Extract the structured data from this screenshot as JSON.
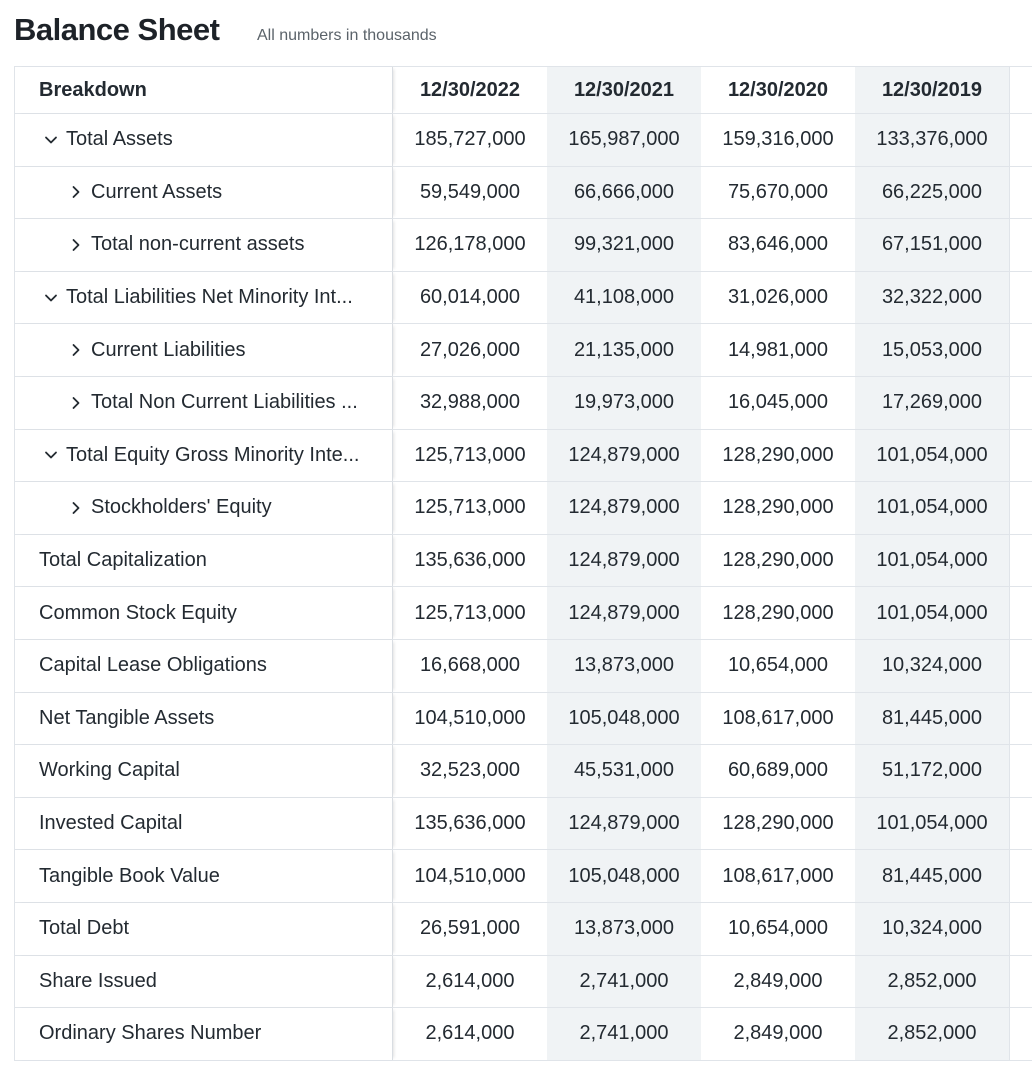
{
  "page": {
    "title": "Balance Sheet",
    "subtitle": "All numbers in thousands"
  },
  "table": {
    "header": {
      "breakdown_label": "Breakdown",
      "columns": [
        "12/30/2022",
        "12/30/2021",
        "12/30/2020",
        "12/30/2019"
      ]
    },
    "rows": [
      {
        "label": "Total Assets",
        "level": 1,
        "toggle": "expanded",
        "values": [
          "185,727,000",
          "165,987,000",
          "159,316,000",
          "133,376,000"
        ]
      },
      {
        "label": "Current Assets",
        "level": 2,
        "toggle": "collapsed",
        "values": [
          "59,549,000",
          "66,666,000",
          "75,670,000",
          "66,225,000"
        ]
      },
      {
        "label": "Total non-current assets",
        "level": 2,
        "toggle": "collapsed",
        "values": [
          "126,178,000",
          "99,321,000",
          "83,646,000",
          "67,151,000"
        ]
      },
      {
        "label": "Total Liabilities Net Minority Int...",
        "level": 1,
        "toggle": "expanded",
        "values": [
          "60,014,000",
          "41,108,000",
          "31,026,000",
          "32,322,000"
        ]
      },
      {
        "label": "Current Liabilities",
        "level": 2,
        "toggle": "collapsed",
        "values": [
          "27,026,000",
          "21,135,000",
          "14,981,000",
          "15,053,000"
        ]
      },
      {
        "label": "Total Non Current Liabilities ...",
        "level": 2,
        "toggle": "collapsed",
        "values": [
          "32,988,000",
          "19,973,000",
          "16,045,000",
          "17,269,000"
        ]
      },
      {
        "label": "Total Equity Gross Minority Inte...",
        "level": 1,
        "toggle": "expanded",
        "values": [
          "125,713,000",
          "124,879,000",
          "128,290,000",
          "101,054,000"
        ]
      },
      {
        "label": "Stockholders' Equity",
        "level": 2,
        "toggle": "collapsed",
        "values": [
          "125,713,000",
          "124,879,000",
          "128,290,000",
          "101,054,000"
        ]
      },
      {
        "label": "Total Capitalization",
        "level": 0,
        "toggle": "none",
        "values": [
          "135,636,000",
          "124,879,000",
          "128,290,000",
          "101,054,000"
        ]
      },
      {
        "label": "Common Stock Equity",
        "level": 0,
        "toggle": "none",
        "values": [
          "125,713,000",
          "124,879,000",
          "128,290,000",
          "101,054,000"
        ]
      },
      {
        "label": "Capital Lease Obligations",
        "level": 0,
        "toggle": "none",
        "values": [
          "16,668,000",
          "13,873,000",
          "10,654,000",
          "10,324,000"
        ]
      },
      {
        "label": "Net Tangible Assets",
        "level": 0,
        "toggle": "none",
        "values": [
          "104,510,000",
          "105,048,000",
          "108,617,000",
          "81,445,000"
        ]
      },
      {
        "label": "Working Capital",
        "level": 0,
        "toggle": "none",
        "values": [
          "32,523,000",
          "45,531,000",
          "60,689,000",
          "51,172,000"
        ]
      },
      {
        "label": "Invested Capital",
        "level": 0,
        "toggle": "none",
        "values": [
          "135,636,000",
          "124,879,000",
          "128,290,000",
          "101,054,000"
        ]
      },
      {
        "label": "Tangible Book Value",
        "level": 0,
        "toggle": "none",
        "values": [
          "104,510,000",
          "105,048,000",
          "108,617,000",
          "81,445,000"
        ]
      },
      {
        "label": "Total Debt",
        "level": 0,
        "toggle": "none",
        "values": [
          "26,591,000",
          "13,873,000",
          "10,654,000",
          "10,324,000"
        ]
      },
      {
        "label": "Share Issued",
        "level": 0,
        "toggle": "none",
        "values": [
          "2,614,000",
          "2,741,000",
          "2,849,000",
          "2,852,000"
        ]
      },
      {
        "label": "Ordinary Shares Number",
        "level": 0,
        "toggle": "none",
        "values": [
          "2,614,000",
          "2,741,000",
          "2,849,000",
          "2,852,000"
        ]
      }
    ]
  },
  "icons": {
    "expanded": "chevron-down-icon",
    "collapsed": "chevron-right-icon"
  },
  "colors": {
    "shaded_column": "#f0f3f5",
    "border": "#e0e4e9",
    "text": "#232a31"
  }
}
